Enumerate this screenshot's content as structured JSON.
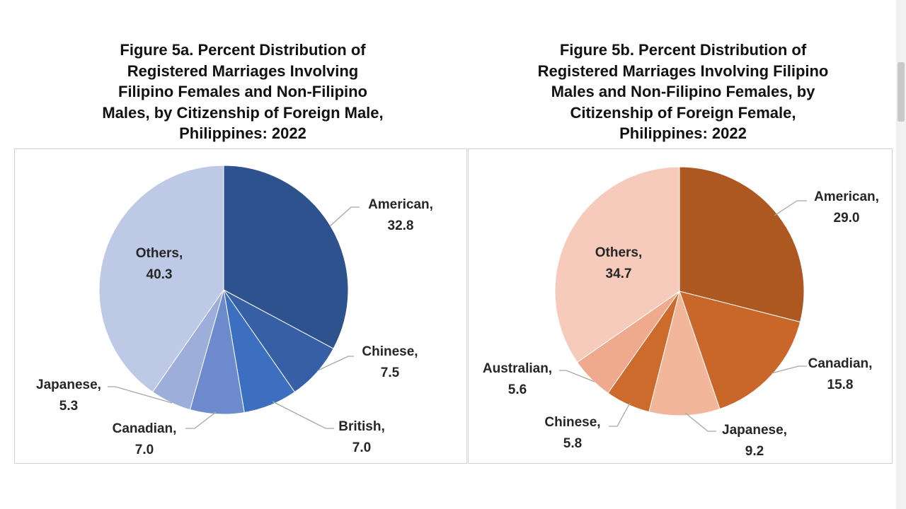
{
  "colors": {
    "a_american": "#2e528d",
    "a_chinese": "#365fa6",
    "a_british": "#3d6fc1",
    "a_canadian": "#6d8acd",
    "a_japanese": "#9caed9",
    "a_others": "#bec9e6",
    "b_american": "#ad5820",
    "b_canadian": "#c9662a",
    "b_japanese": "#f2b69b",
    "b_chinese": "#cd6b2d",
    "b_australian": "#efaa8e",
    "b_others": "#f6cbbb",
    "leader": "#a6a6a6"
  },
  "chart_data": [
    {
      "type": "pie",
      "title": "Figure 5a. Percent Distribution of\nRegistered Marriages Involving\nFilipino Females and Non-Filipino\nMales, by Citizenship of Foreign Male,\nPhilippines: 2022",
      "categories": [
        "American",
        "Chinese",
        "British",
        "Canadian",
        "Japanese",
        "Others"
      ],
      "values": [
        32.8,
        7.5,
        7.0,
        7.0,
        5.3,
        40.3
      ],
      "labels": [
        "32.8",
        "7.5",
        "7.0",
        "7.0",
        "5.3",
        "40.3"
      ]
    },
    {
      "type": "pie",
      "title": "Figure 5b. Percent Distribution of\nRegistered Marriages Involving Filipino\nMales and Non-Filipino Females, by\nCitizenship of Foreign Female,\nPhilippines: 2022",
      "categories": [
        "American",
        "Canadian",
        "Japanese",
        "Chinese",
        "Australian",
        "Others"
      ],
      "values": [
        29.0,
        15.8,
        9.2,
        5.8,
        5.6,
        34.7
      ],
      "labels": [
        "29.0",
        "15.8",
        "9.2",
        "5.8",
        "5.6",
        "34.7"
      ]
    }
  ]
}
